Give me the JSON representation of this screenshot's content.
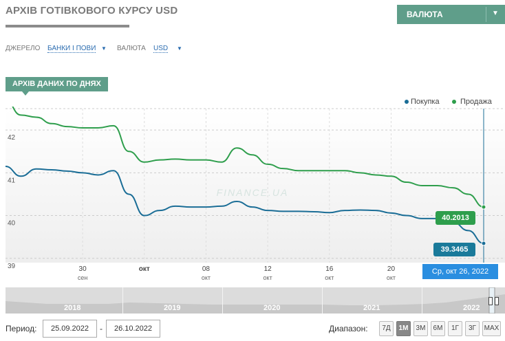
{
  "page": {
    "title": "АРХІВ ГОТІВКОВОГО КУРСУ USD",
    "currency_button": "ВАЛЮТА",
    "filters": {
      "source_label": "ДЖЕРЕЛО",
      "source_value": "БАНКИ І ПОВИ",
      "currency_label": "ВАЛЮТА",
      "currency_value": "USD"
    },
    "section_tag": "АРХІВ ДАНИХ ПО ДНЯХ",
    "watermark": "FINANCE.UA",
    "tooltip_date": "Ср, окт 26, 2022",
    "period_label": "Период:",
    "period_from": "25.09.2022",
    "period_sep": "-",
    "period_to": "26.10.2022",
    "range_label": "Диапазон:",
    "range_buttons": [
      "7Д",
      "1М",
      "3М",
      "6М",
      "1Г",
      "3Г",
      "MAX"
    ],
    "range_active": "1М",
    "navigator_years": [
      "2018",
      "2019",
      "2020",
      "2021",
      "2022"
    ]
  },
  "chart_data": {
    "type": "line",
    "x_tick_labels": [
      {
        "day": "30",
        "month": "сен"
      },
      {
        "day": "окт",
        "month": ""
      },
      {
        "day": "08",
        "month": "окт"
      },
      {
        "day": "12",
        "month": "окт"
      },
      {
        "day": "16",
        "month": "окт"
      },
      {
        "day": "20",
        "month": "окт"
      }
    ],
    "y_ticks": [
      39,
      40,
      41,
      42
    ],
    "ylim": [
      38.9,
      42.5
    ],
    "x_range": [
      "2022-09-25",
      "2022-10-26"
    ],
    "legend_position": "top-right",
    "series": [
      {
        "name": "Покупка",
        "color": "#1a6d96",
        "last_value_label": "39.3465",
        "x": [
          "2022-09-25",
          "2022-09-26",
          "2022-09-27",
          "2022-09-28",
          "2022-09-29",
          "2022-09-30",
          "2022-10-01",
          "2022-10-02",
          "2022-10-03",
          "2022-10-04",
          "2022-10-05",
          "2022-10-06",
          "2022-10-07",
          "2022-10-08",
          "2022-10-09",
          "2022-10-10",
          "2022-10-11",
          "2022-10-12",
          "2022-10-13",
          "2022-10-14",
          "2022-10-15",
          "2022-10-16",
          "2022-10-17",
          "2022-10-18",
          "2022-10-19",
          "2022-10-20",
          "2022-10-21",
          "2022-10-22",
          "2022-10-23",
          "2022-10-24",
          "2022-10-25",
          "2022-10-26"
        ],
        "values": [
          41.15,
          40.92,
          41.09,
          41.07,
          41.04,
          41.0,
          40.95,
          41.05,
          40.5,
          40.0,
          40.12,
          40.22,
          40.2,
          40.2,
          40.22,
          40.33,
          40.2,
          40.12,
          40.1,
          40.1,
          40.09,
          40.07,
          40.12,
          40.13,
          40.12,
          40.06,
          40.0,
          39.93,
          39.93,
          39.85,
          39.65,
          39.35
        ]
      },
      {
        "name": "Продажа",
        "color": "#2e9e4c",
        "last_value_label": "40.2013",
        "x": [
          "2022-09-25",
          "2022-09-26",
          "2022-09-27",
          "2022-09-28",
          "2022-09-29",
          "2022-09-30",
          "2022-10-01",
          "2022-10-02",
          "2022-10-03",
          "2022-10-04",
          "2022-10-05",
          "2022-10-06",
          "2022-10-07",
          "2022-10-08",
          "2022-10-09",
          "2022-10-10",
          "2022-10-11",
          "2022-10-12",
          "2022-10-13",
          "2022-10-14",
          "2022-10-15",
          "2022-10-16",
          "2022-10-17",
          "2022-10-18",
          "2022-10-19",
          "2022-10-20",
          "2022-10-21",
          "2022-10-22",
          "2022-10-23",
          "2022-10-24",
          "2022-10-25",
          "2022-10-26"
        ],
        "values": [
          42.7,
          42.35,
          42.3,
          42.15,
          42.08,
          42.05,
          42.05,
          42.1,
          41.5,
          41.25,
          41.3,
          41.32,
          41.3,
          41.3,
          41.25,
          41.58,
          41.42,
          41.2,
          41.1,
          41.05,
          41.05,
          41.05,
          41.05,
          41.0,
          40.95,
          40.92,
          40.78,
          40.7,
          40.7,
          40.65,
          40.5,
          40.2
        ]
      }
    ]
  }
}
